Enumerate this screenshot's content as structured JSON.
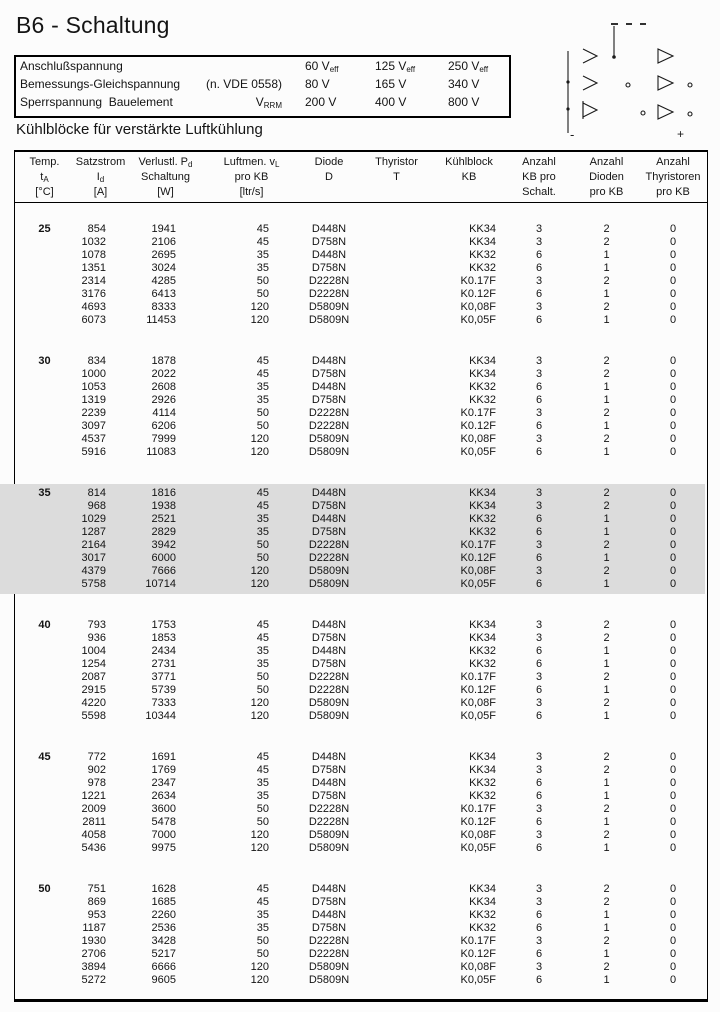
{
  "page": {
    "title": "B6 - Schaltung",
    "section_heading": "Kühlblöcke für verstärkte Luftkühlung"
  },
  "colors": {
    "highlight_band": "#dcdcdc",
    "ink": "#141414"
  },
  "specs": {
    "rows": [
      {
        "label": "Anschlußspannung",
        "mid": {
          "text": "",
          "sub": ""
        },
        "values": [
          {
            "text": "60 V",
            "sub": "eff"
          },
          {
            "text": "125 V",
            "sub": "eff"
          },
          {
            "text": "250 V",
            "sub": "eff"
          }
        ]
      },
      {
        "label": "Bemessungs-Gleichspannung",
        "mid": {
          "text": "(n. VDE 0558)",
          "sub": ""
        },
        "values": [
          {
            "text": "80 V",
            "sub": ""
          },
          {
            "text": "165 V",
            "sub": ""
          },
          {
            "text": "340 V",
            "sub": ""
          }
        ]
      },
      {
        "label": "Sperrspannung  Bauelement",
        "mid": {
          "text": "V",
          "sub": "RRM"
        },
        "values": [
          {
            "text": "200 V",
            "sub": ""
          },
          {
            "text": "400 V",
            "sub": ""
          },
          {
            "text": "800 V",
            "sub": ""
          }
        ]
      }
    ]
  },
  "circuit": {
    "minus_label": "-",
    "plus_label": "+"
  },
  "table": {
    "header": [
      [
        {
          "t": "Temp."
        },
        {
          "t": "t",
          "sub": "A"
        },
        {
          "t": "[°C]"
        }
      ],
      [
        {
          "t": "Satzstrom"
        },
        {
          "t": "I",
          "sub": "d"
        },
        {
          "t": "[A]"
        }
      ],
      [
        {
          "t": "Verlustl. P",
          "sub": "d"
        },
        {
          "t": "Schaltung"
        },
        {
          "t": "[W]"
        }
      ],
      [
        {
          "t": "Luftmen. v",
          "sub": "L"
        },
        {
          "t": "pro KB"
        },
        {
          "t": "[ltr/s]"
        }
      ],
      [
        {
          "t": "Diode"
        },
        {
          "t": "D"
        },
        {
          "t": ""
        }
      ],
      [
        {
          "t": "Thyristor"
        },
        {
          "t": "T"
        },
        {
          "t": ""
        }
      ],
      [
        {
          "t": "Kühlblock"
        },
        {
          "t": "KB"
        },
        {
          "t": ""
        }
      ],
      [
        {
          "t": "Anzahl"
        },
        {
          "t": "KB pro"
        },
        {
          "t": "Schalt."
        }
      ],
      [
        {
          "t": "Anzahl"
        },
        {
          "t": "Dioden"
        },
        {
          "t": "pro KB"
        }
      ],
      [
        {
          "t": "Anzahl"
        },
        {
          "t": "Thyristoren"
        },
        {
          "t": "pro KB"
        }
      ]
    ],
    "groups": [
      {
        "temp": "25",
        "highlight": false,
        "rows": [
          [
            "854",
            "1941",
            "45",
            "D448N",
            "",
            "KK34",
            "3",
            "2",
            "0"
          ],
          [
            "1032",
            "2106",
            "45",
            "D758N",
            "",
            "KK34",
            "3",
            "2",
            "0"
          ],
          [
            "1078",
            "2695",
            "35",
            "D448N",
            "",
            "KK32",
            "6",
            "1",
            "0"
          ],
          [
            "1351",
            "3024",
            "35",
            "D758N",
            "",
            "KK32",
            "6",
            "1",
            "0"
          ],
          [
            "2314",
            "4285",
            "50",
            "D2228N",
            "",
            "K0.17F",
            "3",
            "2",
            "0"
          ],
          [
            "3176",
            "6413",
            "50",
            "D2228N",
            "",
            "K0.12F",
            "6",
            "1",
            "0"
          ],
          [
            "4693",
            "8333",
            "120",
            "D5809N",
            "",
            "K0,08F",
            "3",
            "2",
            "0"
          ],
          [
            "6073",
            "11453",
            "120",
            "D5809N",
            "",
            "K0,05F",
            "6",
            "1",
            "0"
          ]
        ]
      },
      {
        "temp": "30",
        "highlight": false,
        "rows": [
          [
            "834",
            "1878",
            "45",
            "D448N",
            "",
            "KK34",
            "3",
            "2",
            "0"
          ],
          [
            "1000",
            "2022",
            "45",
            "D758N",
            "",
            "KK34",
            "3",
            "2",
            "0"
          ],
          [
            "1053",
            "2608",
            "35",
            "D448N",
            "",
            "KK32",
            "6",
            "1",
            "0"
          ],
          [
            "1319",
            "2926",
            "35",
            "D758N",
            "",
            "KK32",
            "6",
            "1",
            "0"
          ],
          [
            "2239",
            "4114",
            "50",
            "D2228N",
            "",
            "K0.17F",
            "3",
            "2",
            "0"
          ],
          [
            "3097",
            "6206",
            "50",
            "D2228N",
            "",
            "K0.12F",
            "6",
            "1",
            "0"
          ],
          [
            "4537",
            "7999",
            "120",
            "D5809N",
            "",
            "K0,08F",
            "3",
            "2",
            "0"
          ],
          [
            "5916",
            "11083",
            "120",
            "D5809N",
            "",
            "K0,05F",
            "6",
            "1",
            "0"
          ]
        ]
      },
      {
        "temp": "35",
        "highlight": true,
        "rows": [
          [
            "814",
            "1816",
            "45",
            "D448N",
            "",
            "KK34",
            "3",
            "2",
            "0"
          ],
          [
            "968",
            "1938",
            "45",
            "D758N",
            "",
            "KK34",
            "3",
            "2",
            "0"
          ],
          [
            "1029",
            "2521",
            "35",
            "D448N",
            "",
            "KK32",
            "6",
            "1",
            "0"
          ],
          [
            "1287",
            "2829",
            "35",
            "D758N",
            "",
            "KK32",
            "6",
            "1",
            "0"
          ],
          [
            "2164",
            "3942",
            "50",
            "D2228N",
            "",
            "K0.17F",
            "3",
            "2",
            "0"
          ],
          [
            "3017",
            "6000",
            "50",
            "D2228N",
            "",
            "K0.12F",
            "6",
            "1",
            "0"
          ],
          [
            "4379",
            "7666",
            "120",
            "D5809N",
            "",
            "K0,08F",
            "3",
            "2",
            "0"
          ],
          [
            "5758",
            "10714",
            "120",
            "D5809N",
            "",
            "K0,05F",
            "6",
            "1",
            "0"
          ]
        ]
      },
      {
        "temp": "40",
        "highlight": false,
        "rows": [
          [
            "793",
            "1753",
            "45",
            "D448N",
            "",
            "KK34",
            "3",
            "2",
            "0"
          ],
          [
            "936",
            "1853",
            "45",
            "D758N",
            "",
            "KK34",
            "3",
            "2",
            "0"
          ],
          [
            "1004",
            "2434",
            "35",
            "D448N",
            "",
            "KK32",
            "6",
            "1",
            "0"
          ],
          [
            "1254",
            "2731",
            "35",
            "D758N",
            "",
            "KK32",
            "6",
            "1",
            "0"
          ],
          [
            "2087",
            "3771",
            "50",
            "D2228N",
            "",
            "K0.17F",
            "3",
            "2",
            "0"
          ],
          [
            "2915",
            "5739",
            "50",
            "D2228N",
            "",
            "K0.12F",
            "6",
            "1",
            "0"
          ],
          [
            "4220",
            "7333",
            "120",
            "D5809N",
            "",
            "K0,08F",
            "3",
            "2",
            "0"
          ],
          [
            "5598",
            "10344",
            "120",
            "D5809N",
            "",
            "K0,05F",
            "6",
            "1",
            "0"
          ]
        ]
      },
      {
        "temp": "45",
        "highlight": false,
        "rows": [
          [
            "772",
            "1691",
            "45",
            "D448N",
            "",
            "KK34",
            "3",
            "2",
            "0"
          ],
          [
            "902",
            "1769",
            "45",
            "D758N",
            "",
            "KK34",
            "3",
            "2",
            "0"
          ],
          [
            "978",
            "2347",
            "35",
            "D448N",
            "",
            "KK32",
            "6",
            "1",
            "0"
          ],
          [
            "1221",
            "2634",
            "35",
            "D758N",
            "",
            "KK32",
            "6",
            "1",
            "0"
          ],
          [
            "2009",
            "3600",
            "50",
            "D2228N",
            "",
            "K0.17F",
            "3",
            "2",
            "0"
          ],
          [
            "2811",
            "5478",
            "50",
            "D2228N",
            "",
            "K0.12F",
            "6",
            "1",
            "0"
          ],
          [
            "4058",
            "7000",
            "120",
            "D5809N",
            "",
            "K0,08F",
            "3",
            "2",
            "0"
          ],
          [
            "5436",
            "9975",
            "120",
            "D5809N",
            "",
            "K0,05F",
            "6",
            "1",
            "0"
          ]
        ]
      },
      {
        "temp": "50",
        "highlight": false,
        "rows": [
          [
            "751",
            "1628",
            "45",
            "D448N",
            "",
            "KK34",
            "3",
            "2",
            "0"
          ],
          [
            "869",
            "1685",
            "45",
            "D758N",
            "",
            "KK34",
            "3",
            "2",
            "0"
          ],
          [
            "953",
            "2260",
            "35",
            "D448N",
            "",
            "KK32",
            "6",
            "1",
            "0"
          ],
          [
            "1187",
            "2536",
            "35",
            "D758N",
            "",
            "KK32",
            "6",
            "1",
            "0"
          ],
          [
            "1930",
            "3428",
            "50",
            "D2228N",
            "",
            "K0.17F",
            "3",
            "2",
            "0"
          ],
          [
            "2706",
            "5217",
            "50",
            "D2228N",
            "",
            "K0.12F",
            "6",
            "1",
            "0"
          ],
          [
            "3894",
            "6666",
            "120",
            "D5809N",
            "",
            "K0,08F",
            "3",
            "2",
            "0"
          ],
          [
            "5272",
            "9605",
            "120",
            "D5809N",
            "",
            "K0,05F",
            "6",
            "1",
            "0"
          ]
        ]
      }
    ]
  }
}
